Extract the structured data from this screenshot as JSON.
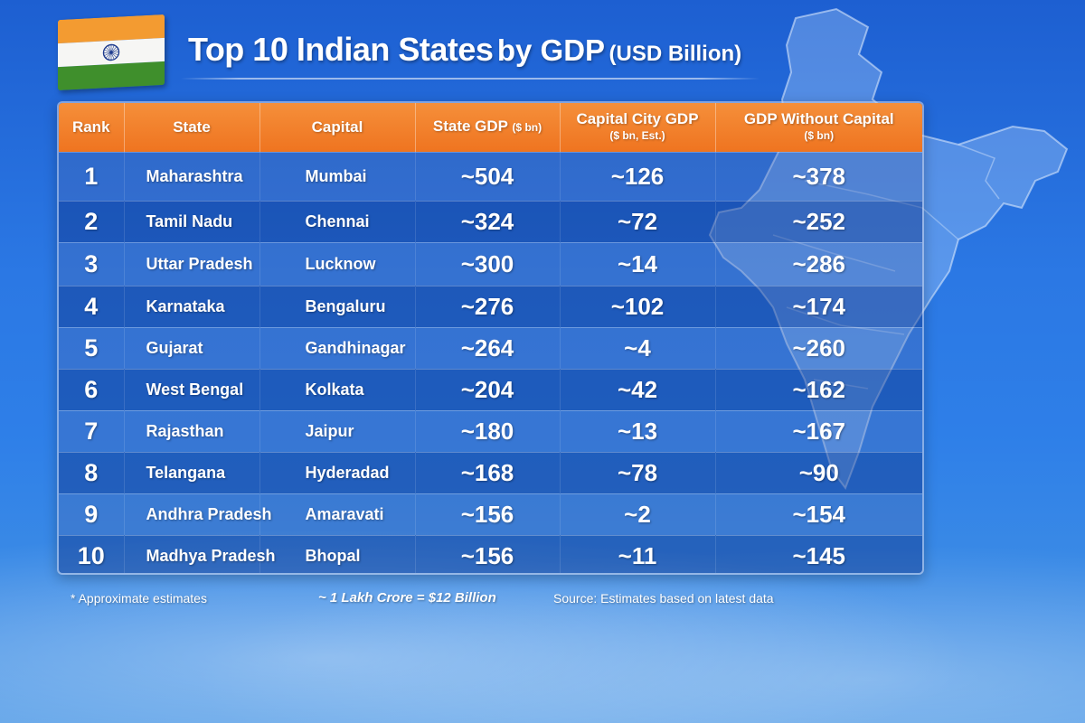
{
  "title": {
    "part1": "Top 10 Indian States",
    "part2": "by GDP",
    "part3": "(USD Billion)"
  },
  "flag": {
    "colors": {
      "saffron": "#f39b31",
      "white": "#f6f6f4",
      "green": "#3f8f2c",
      "chakra": "#1f3c8f"
    }
  },
  "table": {
    "headers": {
      "rank": "Rank",
      "state": "State",
      "capital": "Capital",
      "state_gdp": "State GDP",
      "state_gdp_unit": "($ bn)",
      "capital_gdp": "Capital City GDP",
      "capital_gdp_unit": "($ bn, Est.)",
      "without_capital": "GDP Without Capital",
      "without_capital_unit": "($ bn)"
    },
    "rows": [
      {
        "rank": "1",
        "state": "Maharashtra",
        "capital": "Mumbai",
        "state_gdp": "~504",
        "capital_gdp": "~126",
        "without_capital": "~378"
      },
      {
        "rank": "2",
        "state": "Tamil Nadu",
        "capital": "Chennai",
        "state_gdp": "~324",
        "capital_gdp": "~72",
        "without_capital": "~252"
      },
      {
        "rank": "3",
        "state": "Uttar Pradesh",
        "capital": "Lucknow",
        "state_gdp": "~300",
        "capital_gdp": "~14",
        "without_capital": "~286"
      },
      {
        "rank": "4",
        "state": "Karnataka",
        "capital": "Bengaluru",
        "state_gdp": "~276",
        "capital_gdp": "~102",
        "without_capital": "~174"
      },
      {
        "rank": "5",
        "state": "Gujarat",
        "capital": "Gandhinagar",
        "state_gdp": "~264",
        "capital_gdp": "~4",
        "without_capital": "~260"
      },
      {
        "rank": "6",
        "state": "West Bengal",
        "capital": "Kolkata",
        "state_gdp": "~204",
        "capital_gdp": "~42",
        "without_capital": "~162"
      },
      {
        "rank": "7",
        "state": "Rajasthan",
        "capital": "Jaipur",
        "state_gdp": "~180",
        "capital_gdp": "~13",
        "without_capital": "~167"
      },
      {
        "rank": "8",
        "state": "Telangana",
        "capital": "Hyderadad",
        "state_gdp": "~168",
        "capital_gdp": "~78",
        "without_capital": "~90"
      },
      {
        "rank": "9",
        "state": "Andhra Pradesh",
        "capital": "Amaravati",
        "state_gdp": "~156",
        "capital_gdp": "~2",
        "without_capital": "~154"
      },
      {
        "rank": "10",
        "state": "Madhya Pradesh",
        "capital": "Bhopal",
        "state_gdp": "~156",
        "capital_gdp": "~11",
        "without_capital": "~145"
      }
    ]
  },
  "footer": {
    "note": "* Approximate estimates",
    "conversion": "~ 1 Lakh Crore = $12 Billion",
    "source": "Source: Estimates based on latest data"
  },
  "colors": {
    "header_orange": "#ef7420",
    "background_blue": "#2b78e4"
  }
}
